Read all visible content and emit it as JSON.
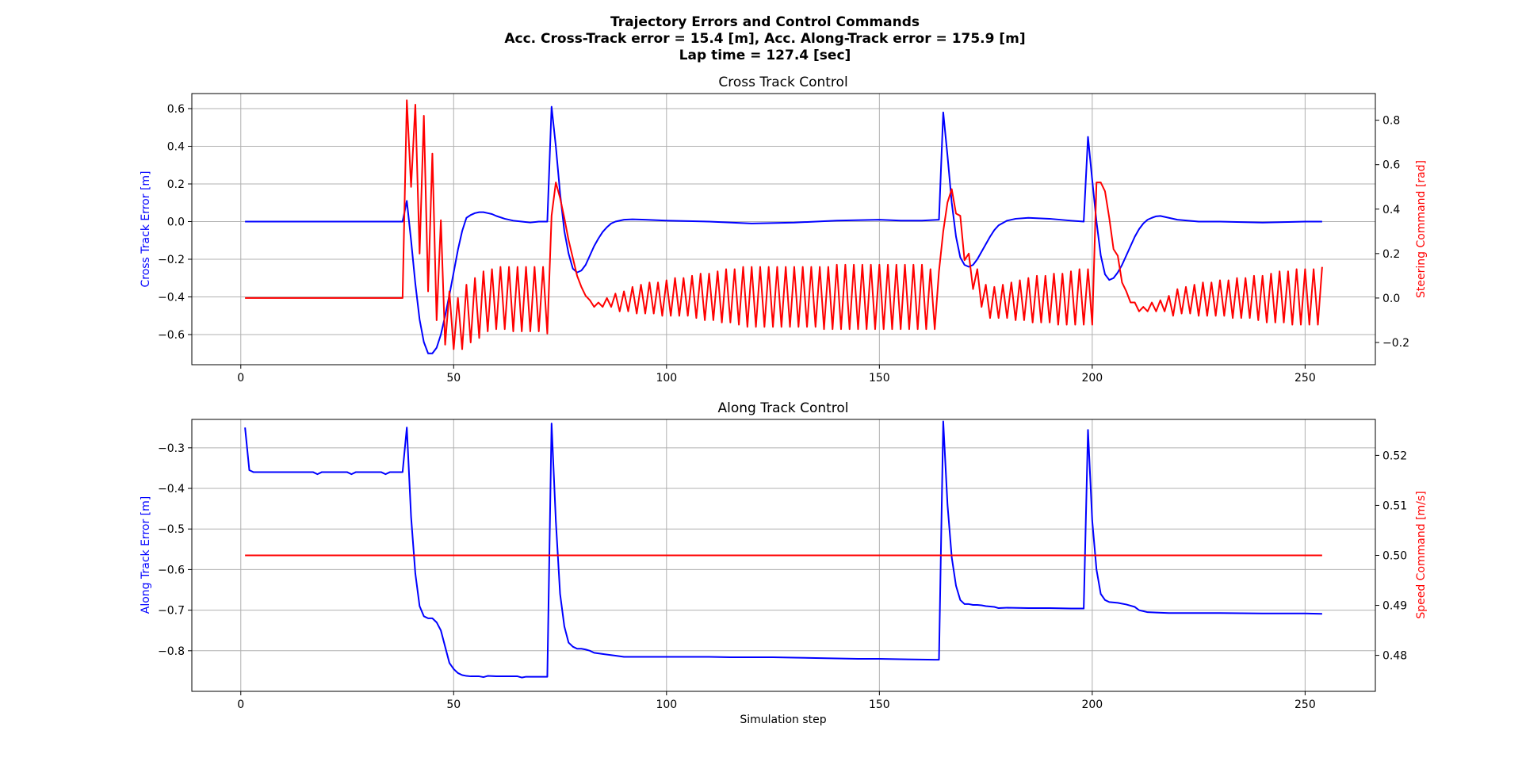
{
  "figure": {
    "suptitle_lines": [
      "Trajectory Errors and Control Commands",
      "Acc. Cross-Track error = 15.4 [m], Acc. Along-Track error = 175.9 [m]",
      "Lap time = 127.4 [sec]"
    ]
  },
  "chart_data": [
    {
      "type": "line",
      "title": "Cross Track Control",
      "xlabel": "",
      "xlim": [
        -11.5,
        266.5
      ],
      "xticks": [
        0,
        50,
        100,
        150,
        200,
        250
      ],
      "grid": true,
      "left_axis": {
        "label": "Cross Track Error [m]",
        "color": "#0000ff",
        "ylim": [
          -0.76,
          0.68
        ],
        "ticks": [
          -0.6,
          -0.4,
          -0.2,
          0.0,
          0.2,
          0.4,
          0.6
        ],
        "tick_labels": [
          "−0.6",
          "−0.4",
          "−0.2",
          "0.0",
          "0.2",
          "0.4",
          "0.6"
        ]
      },
      "right_axis": {
        "label": "Steering Command [rad]",
        "color": "#ff0000",
        "ylim": [
          -0.3,
          0.92
        ],
        "ticks": [
          -0.2,
          0.0,
          0.2,
          0.4,
          0.6,
          0.8
        ],
        "tick_labels": [
          "−0.2",
          "0.0",
          "0.2",
          "0.4",
          "0.6",
          "0.8"
        ]
      },
      "series": [
        {
          "axis": "left",
          "color": "#0000ff",
          "x": [
            1,
            38,
            39,
            40,
            41,
            42,
            43,
            44,
            45,
            46,
            47,
            48,
            49,
            50,
            51,
            52,
            53,
            54,
            55,
            56,
            57,
            58,
            59,
            60,
            62,
            64,
            66,
            68,
            70,
            72,
            73,
            74,
            75,
            76,
            77,
            78,
            79,
            80,
            81,
            82,
            83,
            84,
            85,
            86,
            87,
            88,
            90,
            92,
            95,
            100,
            110,
            120,
            130,
            140,
            150,
            155,
            160,
            164,
            165,
            166,
            167,
            168,
            169,
            170,
            171,
            172,
            173,
            174,
            175,
            176,
            177,
            178,
            180,
            182,
            185,
            190,
            195,
            198,
            199,
            200,
            201,
            202,
            203,
            204,
            205,
            206,
            207,
            208,
            209,
            210,
            211,
            212,
            213,
            214,
            215,
            216,
            218,
            220,
            225,
            230,
            240,
            250,
            254
          ],
          "y": [
            0.0,
            0.0,
            0.11,
            -0.1,
            -0.33,
            -0.52,
            -0.64,
            -0.7,
            -0.7,
            -0.67,
            -0.6,
            -0.5,
            -0.39,
            -0.27,
            -0.15,
            -0.05,
            0.02,
            0.035,
            0.045,
            0.05,
            0.05,
            0.045,
            0.04,
            0.03,
            0.015,
            0.005,
            0.0,
            -0.005,
            0.0,
            0.0,
            0.61,
            0.4,
            0.15,
            -0.05,
            -0.17,
            -0.25,
            -0.27,
            -0.26,
            -0.23,
            -0.18,
            -0.13,
            -0.09,
            -0.055,
            -0.03,
            -0.01,
            0.0,
            0.01,
            0.012,
            0.01,
            0.005,
            0.0,
            -0.01,
            -0.005,
            0.005,
            0.01,
            0.005,
            0.005,
            0.01,
            0.58,
            0.35,
            0.1,
            -0.08,
            -0.19,
            -0.23,
            -0.24,
            -0.23,
            -0.2,
            -0.16,
            -0.12,
            -0.08,
            -0.045,
            -0.02,
            0.005,
            0.015,
            0.02,
            0.015,
            0.005,
            0.0,
            0.45,
            0.22,
            0.0,
            -0.18,
            -0.28,
            -0.31,
            -0.3,
            -0.27,
            -0.23,
            -0.18,
            -0.13,
            -0.08,
            -0.04,
            -0.01,
            0.01,
            0.02,
            0.028,
            0.03,
            0.02,
            0.01,
            0.0,
            0.0,
            -0.005,
            0.0,
            0.0
          ]
        },
        {
          "axis": "right",
          "color": "#ff0000",
          "x": [
            1,
            38,
            39,
            40,
            41,
            42,
            43,
            44,
            45,
            46,
            47,
            48,
            49,
            50,
            51,
            52,
            53,
            54,
            55,
            56,
            57,
            58,
            59,
            60,
            61,
            62,
            63,
            64,
            65,
            66,
            67,
            68,
            69,
            70,
            71,
            72,
            73,
            74,
            75,
            76,
            77,
            78,
            79,
            80,
            81,
            82,
            83,
            84,
            85,
            86,
            87,
            88,
            89,
            90,
            91,
            92,
            93,
            94,
            95,
            96,
            97,
            98,
            99,
            100,
            101,
            102,
            103,
            104,
            105,
            106,
            107,
            108,
            109,
            110,
            111,
            112,
            113,
            114,
            115,
            116,
            117,
            118,
            119,
            120,
            121,
            122,
            123,
            124,
            125,
            126,
            127,
            128,
            129,
            130,
            131,
            132,
            133,
            134,
            135,
            136,
            137,
            138,
            139,
            140,
            141,
            142,
            143,
            144,
            145,
            146,
            147,
            148,
            149,
            150,
            151,
            152,
            153,
            154,
            155,
            156,
            157,
            158,
            159,
            160,
            161,
            162,
            163,
            164,
            165,
            166,
            167,
            168,
            169,
            170,
            171,
            172,
            173,
            174,
            175,
            176,
            177,
            178,
            179,
            180,
            181,
            182,
            183,
            184,
            185,
            186,
            187,
            188,
            189,
            190,
            191,
            192,
            193,
            194,
            195,
            196,
            197,
            198,
            199,
            200,
            201,
            202,
            203,
            204,
            205,
            206,
            207,
            208,
            209,
            210,
            211,
            212,
            213,
            214,
            215,
            216,
            217,
            218,
            219,
            220,
            221,
            222,
            223,
            224,
            225,
            226,
            227,
            228,
            229,
            230,
            231,
            232,
            233,
            234,
            235,
            236,
            237,
            238,
            239,
            240,
            241,
            242,
            243,
            244,
            245,
            246,
            247,
            248,
            249,
            250,
            251,
            252,
            253,
            254
          ],
          "y": [
            0.0,
            0.0,
            0.89,
            0.5,
            0.87,
            0.2,
            0.82,
            0.03,
            0.65,
            -0.1,
            0.35,
            -0.21,
            0.03,
            -0.23,
            0.0,
            -0.23,
            0.06,
            -0.2,
            0.09,
            -0.18,
            0.12,
            -0.15,
            0.13,
            -0.14,
            0.14,
            -0.14,
            0.14,
            -0.15,
            0.14,
            -0.15,
            0.14,
            -0.15,
            0.14,
            -0.15,
            0.14,
            -0.16,
            0.37,
            0.52,
            0.45,
            0.36,
            0.26,
            0.18,
            0.1,
            0.05,
            0.01,
            -0.01,
            -0.04,
            -0.02,
            -0.04,
            0.0,
            -0.04,
            0.02,
            -0.06,
            0.03,
            -0.06,
            0.05,
            -0.07,
            0.06,
            -0.07,
            0.07,
            -0.07,
            0.07,
            -0.08,
            0.08,
            -0.08,
            0.09,
            -0.08,
            0.09,
            -0.08,
            0.1,
            -0.09,
            0.11,
            -0.1,
            0.11,
            -0.1,
            0.12,
            -0.11,
            0.13,
            -0.11,
            0.13,
            -0.12,
            0.14,
            -0.13,
            0.14,
            -0.13,
            0.14,
            -0.13,
            0.14,
            -0.13,
            0.14,
            -0.13,
            0.14,
            -0.13,
            0.14,
            -0.13,
            0.14,
            -0.13,
            0.14,
            -0.13,
            0.14,
            -0.14,
            0.14,
            -0.14,
            0.15,
            -0.14,
            0.15,
            -0.14,
            0.15,
            -0.14,
            0.15,
            -0.14,
            0.15,
            -0.14,
            0.15,
            -0.14,
            0.15,
            -0.14,
            0.15,
            -0.14,
            0.15,
            -0.14,
            0.15,
            -0.14,
            0.15,
            -0.14,
            0.13,
            -0.14,
            0.12,
            0.3,
            0.43,
            0.49,
            0.38,
            0.37,
            0.17,
            0.2,
            0.04,
            0.13,
            -0.04,
            0.06,
            -0.09,
            0.05,
            -0.09,
            0.06,
            -0.09,
            0.07,
            -0.1,
            0.08,
            -0.1,
            0.09,
            -0.11,
            0.1,
            -0.11,
            0.1,
            -0.11,
            0.11,
            -0.12,
            0.11,
            -0.12,
            0.12,
            -0.12,
            0.13,
            -0.12,
            0.13,
            -0.12,
            0.52,
            0.52,
            0.48,
            0.36,
            0.22,
            0.19,
            0.07,
            0.03,
            -0.02,
            -0.02,
            -0.06,
            -0.04,
            -0.06,
            -0.02,
            -0.06,
            -0.01,
            -0.06,
            0.01,
            -0.08,
            0.04,
            -0.07,
            0.05,
            -0.07,
            0.06,
            -0.08,
            0.07,
            -0.08,
            0.07,
            -0.08,
            0.08,
            -0.08,
            0.08,
            -0.09,
            0.09,
            -0.09,
            0.09,
            -0.09,
            0.1,
            -0.1,
            0.1,
            -0.11,
            0.11,
            -0.11,
            0.12,
            -0.11,
            0.12,
            -0.12,
            0.13,
            -0.12,
            0.13,
            -0.12,
            0.13,
            -0.12,
            0.14
          ]
        }
      ]
    },
    {
      "type": "line",
      "title": "Along Track Control",
      "xlabel": "Simulation step",
      "xlim": [
        -11.5,
        266.5
      ],
      "xticks": [
        0,
        50,
        100,
        150,
        200,
        250
      ],
      "grid": true,
      "left_axis": {
        "label": "Along Track Error [m]",
        "color": "#0000ff",
        "ylim": [
          -0.9,
          -0.23
        ],
        "ticks": [
          -0.8,
          -0.7,
          -0.6,
          -0.5,
          -0.4,
          -0.3
        ],
        "tick_labels": [
          "−0.8",
          "−0.7",
          "−0.6",
          "−0.5",
          "−0.4",
          "−0.3"
        ]
      },
      "right_axis": {
        "label": "Speed Command [m/s]",
        "color": "#ff0000",
        "ylim": [
          0.4728,
          0.5272
        ],
        "ticks": [
          0.48,
          0.49,
          0.5,
          0.51,
          0.52
        ],
        "tick_labels": [
          "0.48",
          "0.49",
          "0.50",
          "0.51",
          "0.52"
        ]
      },
      "series": [
        {
          "axis": "left",
          "color": "#0000ff",
          "x": [
            1,
            2,
            3,
            5,
            10,
            17,
            18,
            19,
            25,
            26,
            27,
            33,
            34,
            35,
            38,
            39,
            40,
            41,
            42,
            43,
            44,
            45,
            46,
            47,
            48,
            49,
            50,
            51,
            52,
            53,
            54,
            55,
            56,
            57,
            58,
            60,
            65,
            66,
            67,
            72,
            73,
            74,
            75,
            76,
            77,
            78,
            79,
            80,
            81,
            82,
            83,
            85,
            88,
            90,
            95,
            100,
            105,
            110,
            115,
            120,
            125,
            130,
            135,
            140,
            145,
            150,
            155,
            163,
            164,
            165,
            166,
            167,
            168,
            169,
            170,
            171,
            172,
            173,
            174,
            175,
            177,
            178,
            180,
            185,
            190,
            195,
            198,
            199,
            200,
            201,
            202,
            203,
            204,
            206,
            208,
            210,
            211,
            213,
            215,
            218,
            220,
            225,
            230,
            240,
            250,
            254
          ],
          "y": [
            -0.25,
            -0.355,
            -0.36,
            -0.36,
            -0.36,
            -0.36,
            -0.365,
            -0.36,
            -0.36,
            -0.365,
            -0.36,
            -0.36,
            -0.365,
            -0.36,
            -0.36,
            -0.25,
            -0.47,
            -0.61,
            -0.69,
            -0.715,
            -0.72,
            -0.72,
            -0.73,
            -0.75,
            -0.79,
            -0.83,
            -0.845,
            -0.855,
            -0.86,
            -0.862,
            -0.863,
            -0.863,
            -0.863,
            -0.865,
            -0.862,
            -0.863,
            -0.863,
            -0.866,
            -0.864,
            -0.864,
            -0.24,
            -0.48,
            -0.66,
            -0.74,
            -0.78,
            -0.79,
            -0.795,
            -0.795,
            -0.797,
            -0.8,
            -0.805,
            -0.808,
            -0.812,
            -0.815,
            -0.815,
            -0.815,
            -0.815,
            -0.815,
            -0.816,
            -0.816,
            -0.816,
            -0.817,
            -0.818,
            -0.819,
            -0.82,
            -0.82,
            -0.821,
            -0.822,
            -0.822,
            -0.235,
            -0.44,
            -0.57,
            -0.64,
            -0.675,
            -0.685,
            -0.685,
            -0.687,
            -0.687,
            -0.688,
            -0.69,
            -0.692,
            -0.695,
            -0.694,
            -0.695,
            -0.695,
            -0.696,
            -0.696,
            -0.256,
            -0.48,
            -0.6,
            -0.66,
            -0.675,
            -0.68,
            -0.682,
            -0.686,
            -0.692,
            -0.7,
            -0.705,
            -0.706,
            -0.707,
            -0.707,
            -0.707,
            -0.707,
            -0.708,
            -0.708,
            -0.709
          ]
        },
        {
          "axis": "right",
          "color": "#ff0000",
          "x": [
            1,
            254
          ],
          "y": [
            0.5,
            0.5
          ]
        }
      ]
    }
  ]
}
